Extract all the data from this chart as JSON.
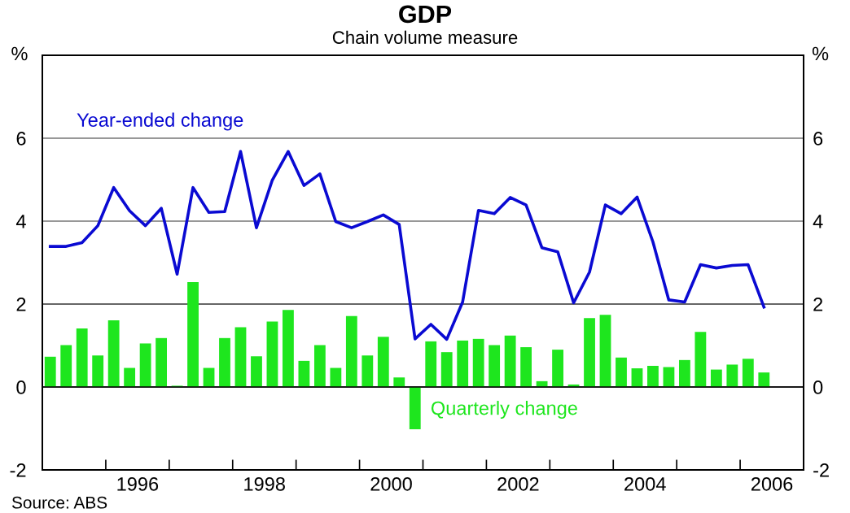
{
  "chart_data": {
    "type": "bar",
    "title": "GDP",
    "subtitle": "Chain volume measure",
    "ylabel": "%",
    "y2label": "%",
    "annotations": [
      "Source: ABS"
    ],
    "x": [
      1995.125,
      1995.375,
      1995.625,
      1995.875,
      1996.125,
      1996.375,
      1996.625,
      1996.875,
      1997.125,
      1997.375,
      1997.625,
      1997.875,
      1998.125,
      1998.375,
      1998.625,
      1998.875,
      1999.125,
      1999.375,
      1999.625,
      1999.875,
      2000.125,
      2000.375,
      2000.625,
      2000.875,
      2001.125,
      2001.375,
      2001.625,
      2001.875,
      2002.125,
      2002.375,
      2002.625,
      2002.875,
      2003.125,
      2003.375,
      2003.625,
      2003.875,
      2004.125,
      2004.375,
      2004.625,
      2004.875,
      2005.125,
      2005.375,
      2005.625,
      2005.875,
      2006.125,
      2006.375
    ],
    "series": [
      {
        "name": "Year-ended change",
        "type": "line",
        "color": "#0a0ad2",
        "values": [
          3.39,
          3.39,
          3.48,
          3.89,
          4.81,
          4.25,
          3.89,
          4.31,
          2.72,
          4.81,
          4.21,
          4.23,
          5.68,
          3.84,
          4.99,
          5.68,
          4.86,
          5.14,
          3.99,
          3.84,
          3.99,
          4.15,
          3.92,
          1.16,
          1.51,
          1.15,
          2.05,
          4.26,
          4.18,
          4.57,
          4.39,
          3.36,
          3.26,
          2.03,
          2.77,
          4.39,
          4.18,
          4.58,
          3.5,
          2.1,
          2.05,
          2.95,
          2.87,
          2.93,
          2.95,
          1.93
        ]
      },
      {
        "name": "Quarterly change",
        "color": "#1ee61e",
        "values": [
          0.73,
          1.01,
          1.41,
          0.76,
          1.61,
          0.46,
          1.05,
          1.18,
          0.03,
          2.53,
          0.46,
          1.18,
          1.44,
          0.74,
          1.58,
          1.86,
          0.63,
          1.01,
          0.46,
          1.71,
          0.76,
          1.21,
          0.23,
          -1.02,
          1.1,
          0.84,
          1.12,
          1.16,
          1.01,
          1.24,
          0.96,
          0.14,
          0.9,
          0.06,
          1.66,
          1.74,
          0.71,
          0.45,
          0.51,
          0.48,
          0.65,
          1.33,
          0.42,
          0.54,
          0.68,
          0.35
        ]
      }
    ],
    "xlim": [
      1995,
      2007
    ],
    "xticks": [
      {
        "value": 1996,
        "label": null
      },
      {
        "value": 1997,
        "label": null
      },
      {
        "value": 1998,
        "label": null
      },
      {
        "value": 1999,
        "label": null
      },
      {
        "value": 2000,
        "label": null
      },
      {
        "value": 2001,
        "label": null
      },
      {
        "value": 2002,
        "label": null
      },
      {
        "value": 2003,
        "label": null
      },
      {
        "value": 2004,
        "label": null
      },
      {
        "value": 2005,
        "label": null
      },
      {
        "value": 2006,
        "label": null
      },
      {
        "value": 1996.5,
        "label": "1996"
      },
      {
        "value": 1998.5,
        "label": "1998"
      },
      {
        "value": 2000.5,
        "label": "2000"
      },
      {
        "value": 2002.5,
        "label": "2002"
      },
      {
        "value": 2004.5,
        "label": "2004"
      },
      {
        "value": 2006.5,
        "label": "2006"
      }
    ],
    "ylim": [
      -2,
      8
    ],
    "yticks": [
      -2,
      0,
      2,
      4,
      6
    ],
    "y2lim": [
      -2,
      8
    ],
    "y2ticks": [
      -2,
      0,
      2,
      4,
      6
    ],
    "grid": "y",
    "legend": false
  }
}
